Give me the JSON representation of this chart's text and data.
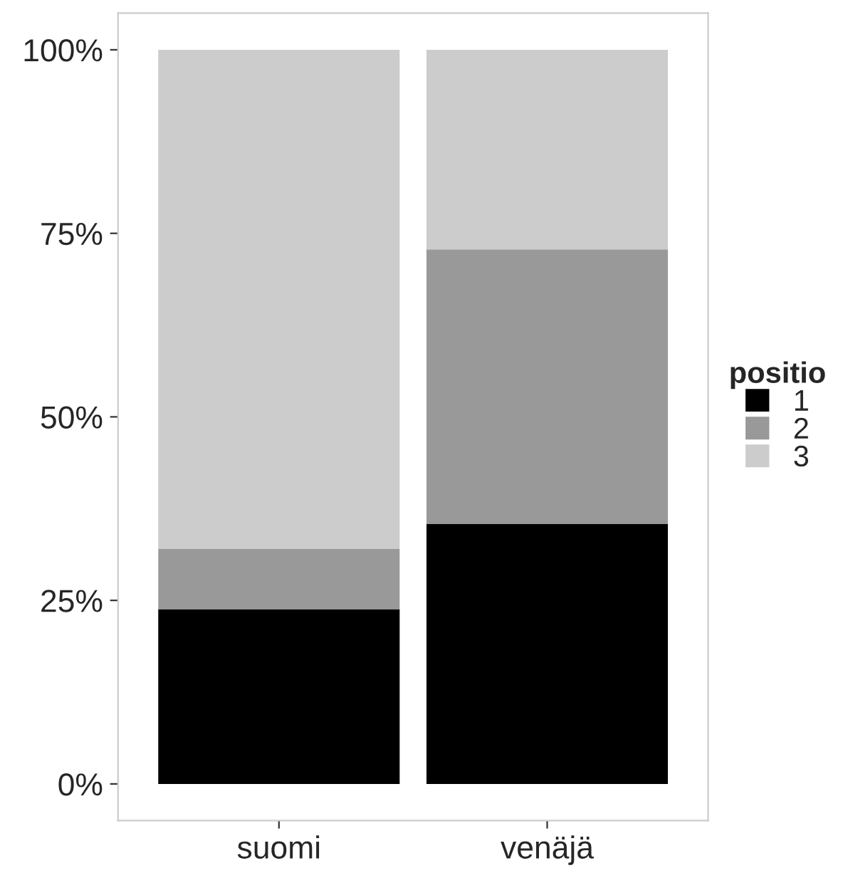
{
  "chart_data": {
    "type": "bar",
    "stacked": true,
    "categories": [
      "suomi",
      "venäjä"
    ],
    "series": [
      {
        "name": "1",
        "color": "#000000",
        "values": [
          23.8,
          35.4
        ]
      },
      {
        "name": "2",
        "color": "#999999",
        "values": [
          8.2,
          37.4
        ]
      },
      {
        "name": "3",
        "color": "#cccccc",
        "values": [
          68.0,
          27.2
        ]
      }
    ],
    "ylim": [
      -5,
      105
    ],
    "yticks": [
      {
        "value": 0,
        "label": "0%"
      },
      {
        "value": 25,
        "label": "25%"
      },
      {
        "value": 50,
        "label": "50%"
      },
      {
        "value": 75,
        "label": "75%"
      },
      {
        "value": 100,
        "label": "100%"
      }
    ],
    "legend_title": "positio",
    "legend": "right",
    "grid": false
  }
}
